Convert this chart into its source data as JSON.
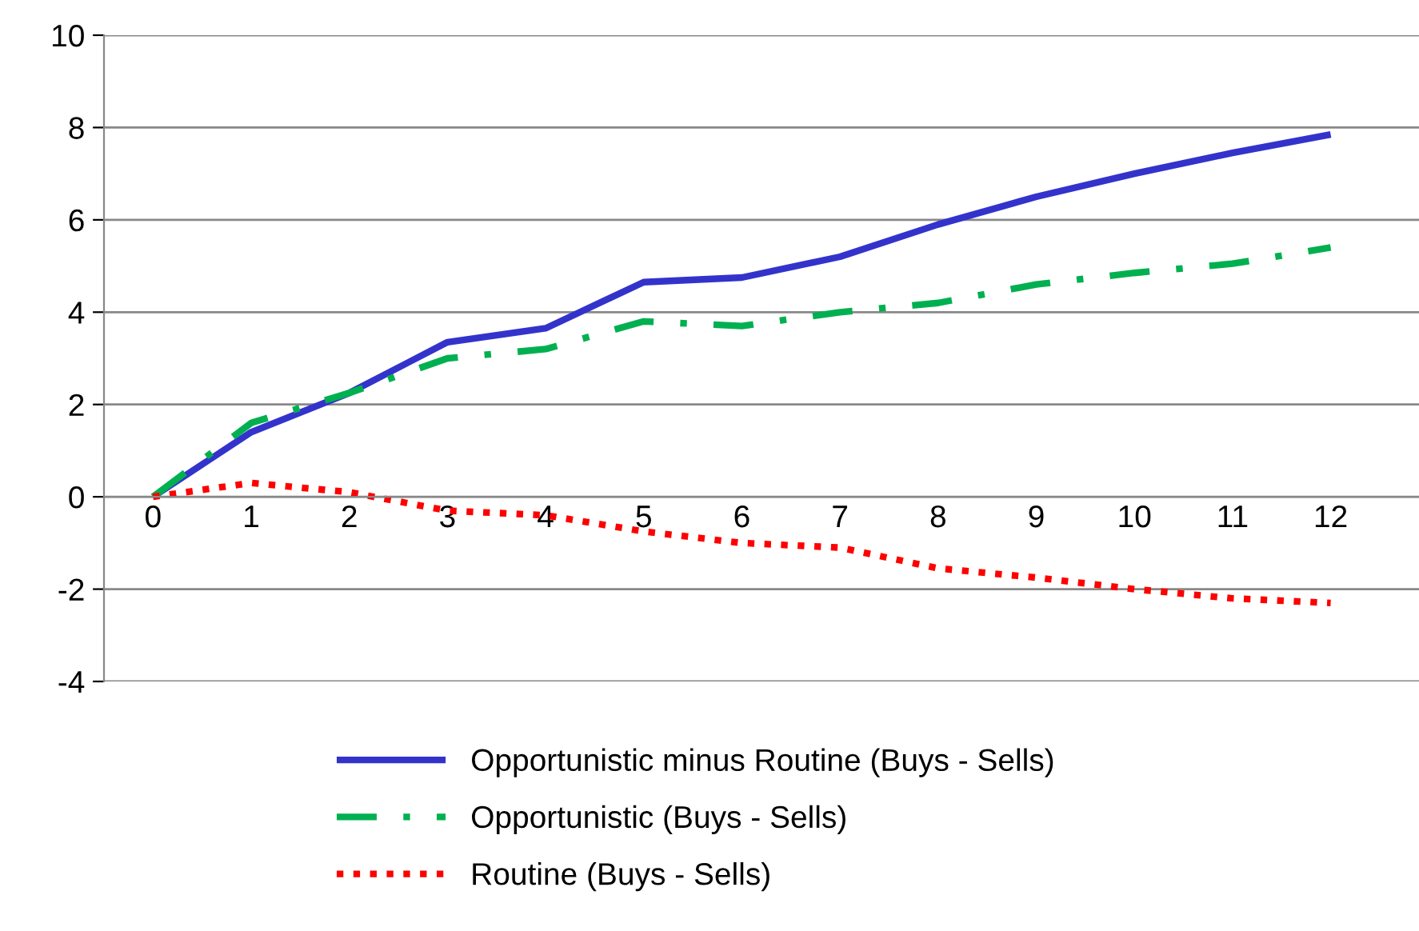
{
  "chart_data": {
    "type": "line",
    "categories": [
      "0",
      "1",
      "2",
      "3",
      "4",
      "5",
      "6",
      "7",
      "8",
      "9",
      "10",
      "11",
      "12"
    ],
    "series": [
      {
        "name": "Opportunistic minus Routine (Buys - Sells)",
        "color": "#3333cc",
        "line_style": "solid",
        "values": [
          0,
          1.4,
          2.25,
          3.35,
          3.65,
          4.65,
          4.75,
          5.2,
          5.9,
          6.5,
          7.0,
          7.45,
          7.85
        ]
      },
      {
        "name": "Opportunistic (Buys - Sells)",
        "color": "#00b050",
        "line_style": "dashdot",
        "values": [
          0,
          1.6,
          2.25,
          3.0,
          3.2,
          3.8,
          3.7,
          4.0,
          4.2,
          4.6,
          4.85,
          5.05,
          5.4
        ]
      },
      {
        "name": "Routine (Buys - Sells)",
        "color": "#ff0000",
        "line_style": "dotted",
        "values": [
          0,
          0.3,
          0.1,
          -0.3,
          -0.4,
          -0.75,
          -1.0,
          -1.1,
          -1.55,
          -1.75,
          -2.0,
          -2.2,
          -2.3
        ]
      }
    ],
    "ylim": [
      -4,
      10
    ],
    "yticks": [
      -4,
      -2,
      0,
      2,
      4,
      6,
      8,
      10
    ],
    "grid": "y",
    "legend": "bottom"
  }
}
